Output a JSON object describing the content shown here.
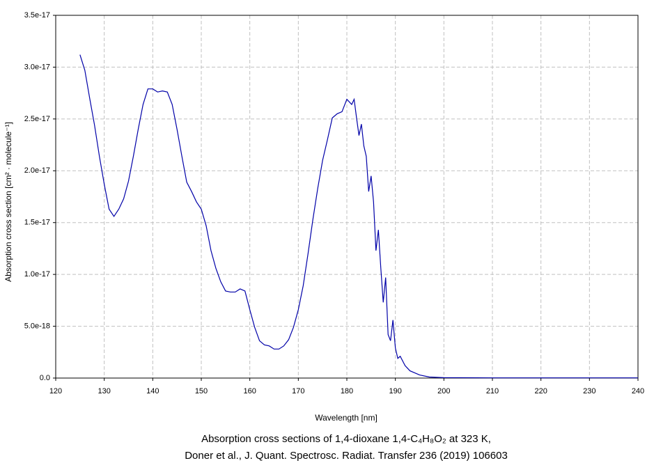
{
  "chart_data": {
    "type": "line",
    "title": "Absorption cross sections of 1,4-dioxane 1,4-C₄H₈O₂ at 323 K,",
    "subtitle": "Doner et al., J. Quant. Spectrosc. Radiat. Transfer 236 (2019) 106603",
    "x_label": "Wavelength [nm]",
    "y_label": "Absorption cross section [cm² · molecule⁻¹]",
    "xlim": [
      120,
      240
    ],
    "xticks": [
      120,
      130,
      140,
      150,
      160,
      170,
      180,
      190,
      200,
      210,
      220,
      230,
      240
    ],
    "ylim": [
      0,
      3.5e-17
    ],
    "yticks": [
      {
        "value": 0,
        "label": "0.0"
      },
      {
        "value": 5e-18,
        "label": "5.0e-18"
      },
      {
        "value": 1e-17,
        "label": "1.0e-17"
      },
      {
        "value": 1.5e-17,
        "label": "1.5e-17"
      },
      {
        "value": 2e-17,
        "label": "2.0e-17"
      },
      {
        "value": 2.5e-17,
        "label": "2.5e-17"
      },
      {
        "value": 3e-17,
        "label": "3.0e-17"
      },
      {
        "value": 3.5e-17,
        "label": "3.5e-17"
      }
    ],
    "grid": true,
    "series": [
      {
        "color": "#0000a8",
        "x": [
          125,
          126,
          127,
          128,
          129,
          130,
          131,
          132,
          133,
          134,
          135,
          136,
          137,
          138,
          139,
          140,
          141,
          142,
          143,
          144,
          145,
          146,
          147,
          148,
          149,
          150,
          151,
          152,
          153,
          154,
          155,
          156,
          157,
          158,
          159,
          160,
          161,
          162,
          163,
          164,
          165,
          166,
          167,
          168,
          169,
          170,
          171,
          172,
          173,
          174,
          175,
          176,
          177,
          178,
          179,
          180,
          181,
          181.5,
          182,
          182.5,
          183,
          183.5,
          184,
          184.5,
          185,
          185.5,
          186,
          186.5,
          187,
          187.5,
          188,
          188.5,
          189,
          189.5,
          190,
          190.5,
          191,
          192,
          193,
          194,
          195,
          197,
          200,
          210,
          240
        ],
        "values": [
          3.12e-17,
          2.97e-17,
          2.7e-17,
          2.44e-17,
          2.14e-17,
          1.87e-17,
          1.63e-17,
          1.56e-17,
          1.63e-17,
          1.73e-17,
          1.9e-17,
          2.14e-17,
          2.4e-17,
          2.64e-17,
          2.79e-17,
          2.79e-17,
          2.76e-17,
          2.77e-17,
          2.76e-17,
          2.64e-17,
          2.4e-17,
          2.14e-17,
          1.89e-17,
          1.8e-17,
          1.7e-17,
          1.63e-17,
          1.47e-17,
          1.23e-17,
          1.06e-17,
          9.3e-18,
          8.4e-18,
          8.3e-18,
          8.3e-18,
          8.6e-18,
          8.4e-18,
          6.6e-18,
          4.9e-18,
          3.6e-18,
          3.2e-18,
          3.1e-18,
          2.8e-18,
          2.8e-18,
          3.1e-18,
          3.7e-18,
          4.9e-18,
          6.6e-18,
          8.9e-18,
          1.2e-17,
          1.53e-17,
          1.83e-17,
          2.1e-17,
          2.3e-17,
          2.51e-17,
          2.55e-17,
          2.57e-17,
          2.69e-17,
          2.64e-17,
          2.69e-17,
          2.51e-17,
          2.34e-17,
          2.45e-17,
          2.24e-17,
          2.14e-17,
          1.8e-17,
          1.95e-17,
          1.7e-17,
          1.23e-17,
          1.43e-17,
          1.06e-17,
          7.3e-18,
          9.7e-18,
          4.2e-18,
          3.6e-18,
          5.6e-18,
          2.9e-18,
          1.9e-18,
          2.1e-18,
          1.2e-18,
          7e-19,
          5e-19,
          3e-19,
          1e-19,
          4e-20,
          2e-20,
          2e-20
        ]
      }
    ]
  }
}
